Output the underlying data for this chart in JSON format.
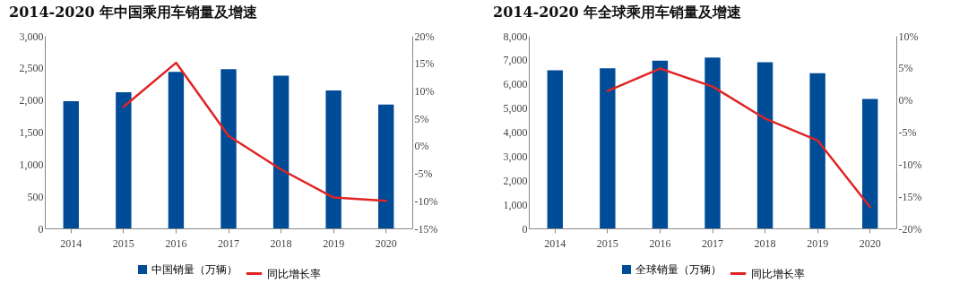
{
  "chart_data": [
    {
      "type": "bar",
      "title": "2014-2020 年中国乘用车销量及增速",
      "categories": [
        "2014",
        "2015",
        "2016",
        "2017",
        "2018",
        "2019",
        "2020"
      ],
      "series": [
        {
          "name": "中国销量（万辆）",
          "color": "#004c97",
          "values": [
            1980,
            2120,
            2440,
            2480,
            2380,
            2150,
            1930
          ]
        },
        {
          "type": "line",
          "name": "同比增长率",
          "color": "#e02424",
          "axis": "y2",
          "values": [
            null,
            7.1,
            15.1,
            1.8,
            -4.3,
            -9.4,
            -10.0
          ]
        }
      ],
      "ylim": [
        0,
        3000
      ],
      "yticks": [
        {
          "value": 0,
          "label": "0"
        },
        {
          "value": 500,
          "label": "500"
        },
        {
          "value": 1000,
          "label": "1,000"
        },
        {
          "value": 1500,
          "label": "1,500"
        },
        {
          "value": 2000,
          "label": "2,000"
        },
        {
          "value": 2500,
          "label": "2,500"
        },
        {
          "value": 3000,
          "label": "3,000"
        }
      ],
      "y2lim": [
        -15,
        20
      ],
      "y2ticks": [
        {
          "value": -15,
          "label": "-15%"
        },
        {
          "value": -10,
          "label": "-10%"
        },
        {
          "value": -5,
          "label": "-5%"
        },
        {
          "value": 0,
          "label": "0%"
        },
        {
          "value": 5,
          "label": "5%"
        },
        {
          "value": 10,
          "label": "10%"
        },
        {
          "value": 15,
          "label": "15%"
        },
        {
          "value": 20,
          "label": "20%"
        }
      ],
      "legend": "bottom",
      "grid": false
    },
    {
      "type": "bar",
      "title": "2014-2020 年全球乘用车销量及增速",
      "categories": [
        "2014",
        "2015",
        "2016",
        "2017",
        "2018",
        "2019",
        "2020"
      ],
      "series": [
        {
          "name": "全球销量（万辆）",
          "color": "#004c97",
          "values": [
            6570,
            6650,
            6970,
            7100,
            6900,
            6450,
            5380
          ]
        },
        {
          "type": "line",
          "name": "同比增长率",
          "color": "#e02424",
          "axis": "y2",
          "values": [
            null,
            1.4,
            4.9,
            2.1,
            -2.9,
            -6.3,
            -16.7
          ]
        }
      ],
      "ylim": [
        0,
        8000
      ],
      "yticks": [
        {
          "value": 0,
          "label": "0"
        },
        {
          "value": 1000,
          "label": "1,000"
        },
        {
          "value": 2000,
          "label": "2,000"
        },
        {
          "value": 3000,
          "label": "3,000"
        },
        {
          "value": 4000,
          "label": "4,000"
        },
        {
          "value": 5000,
          "label": "5,000"
        },
        {
          "value": 6000,
          "label": "6,000"
        },
        {
          "value": 7000,
          "label": "7,000"
        },
        {
          "value": 8000,
          "label": "8,000"
        }
      ],
      "y2lim": [
        -20,
        10
      ],
      "y2ticks": [
        {
          "value": -20,
          "label": "-20%"
        },
        {
          "value": -15,
          "label": "-15%"
        },
        {
          "value": -10,
          "label": "-10%"
        },
        {
          "value": -5,
          "label": "-5%"
        },
        {
          "value": 0,
          "label": "0%"
        },
        {
          "value": 5,
          "label": "5%"
        },
        {
          "value": 10,
          "label": "10%"
        }
      ],
      "legend": "bottom",
      "grid": false
    }
  ]
}
